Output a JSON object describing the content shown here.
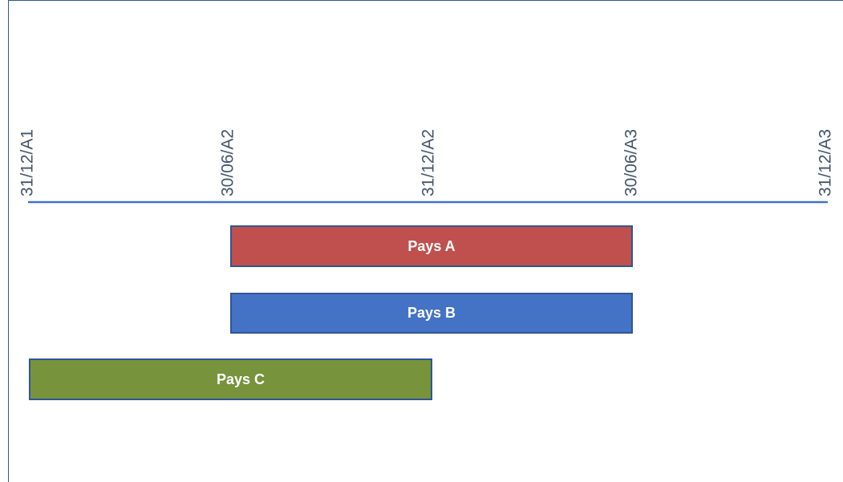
{
  "timeline": {
    "dates": [
      "31/12/A1",
      "30/06/A2",
      "31/12/A2",
      "30/06/A3",
      "31/12/A3"
    ]
  },
  "bars": [
    {
      "label": "Pays A"
    },
    {
      "label": "Pays B"
    },
    {
      "label": "Pays C"
    }
  ]
}
